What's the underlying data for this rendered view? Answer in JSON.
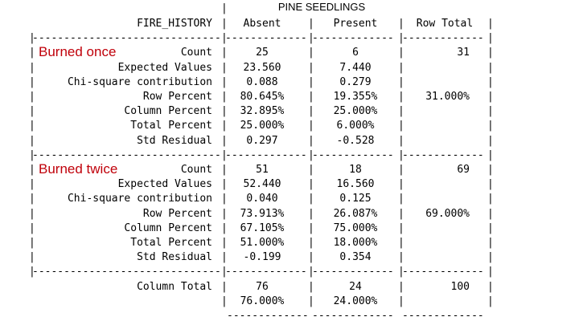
{
  "table": {
    "title": "PINE SEEDLINGS",
    "header": {
      "row_var": "FIRE_HISTORY",
      "cols": [
        "Absent",
        "Present",
        "Row Total"
      ]
    },
    "groups": [
      {
        "name": "Burned once",
        "rows": [
          {
            "label": "Count",
            "absent": "25",
            "present": "6",
            "total": "31"
          },
          {
            "label": "Expected Values",
            "absent": "23.560",
            "present": "7.440",
            "total": ""
          },
          {
            "label": "Chi-square contribution",
            "absent": "0.088",
            "present": "0.279",
            "total": ""
          },
          {
            "label": "Row Percent",
            "absent": "80.645%",
            "present": "19.355%",
            "total": "31.000%"
          },
          {
            "label": "Column Percent",
            "absent": "32.895%",
            "present": "25.000%",
            "total": ""
          },
          {
            "label": "Total Percent",
            "absent": "25.000%",
            "present": "6.000%",
            "total": ""
          },
          {
            "label": "Std Residual",
            "absent": "0.297",
            "present": "-0.528",
            "total": ""
          }
        ]
      },
      {
        "name": "Burned twice",
        "rows": [
          {
            "label": "Count",
            "absent": "51",
            "present": "18",
            "total": "69"
          },
          {
            "label": "Expected Values",
            "absent": "52.440",
            "present": "16.560",
            "total": ""
          },
          {
            "label": "Chi-square contribution",
            "absent": "0.040",
            "present": "0.125",
            "total": ""
          },
          {
            "label": "Row Percent",
            "absent": "73.913%",
            "present": "26.087%",
            "total": "69.000%"
          },
          {
            "label": "Column Percent",
            "absent": "67.105%",
            "present": "75.000%",
            "total": ""
          },
          {
            "label": "Total Percent",
            "absent": "51.000%",
            "present": "18.000%",
            "total": ""
          },
          {
            "label": "Std Residual",
            "absent": "-0.199",
            "present": "0.354",
            "total": ""
          }
        ]
      }
    ],
    "column_total": {
      "label": "Column Total",
      "counts": {
        "absent": "76",
        "present": "24",
        "total": "100"
      },
      "percents": {
        "absent": "76.000%",
        "present": "24.000%"
      }
    }
  }
}
